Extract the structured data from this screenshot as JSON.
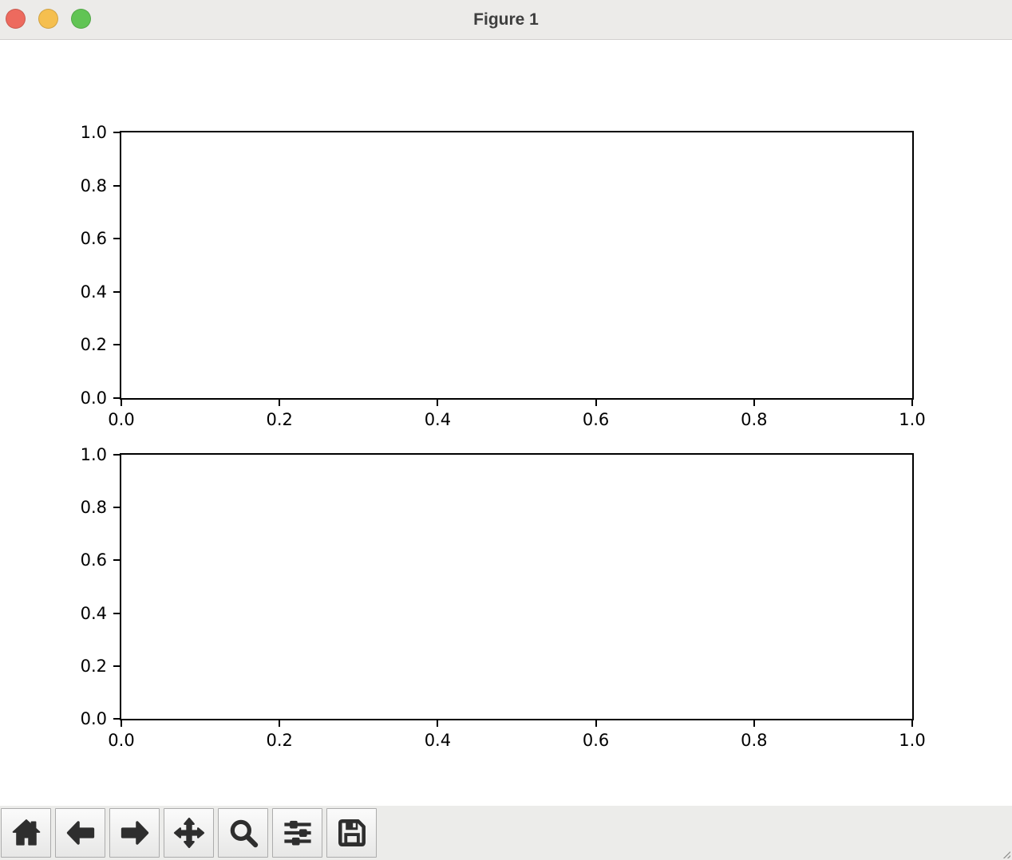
{
  "window": {
    "title": "Figure 1",
    "traffic_lights": {
      "close_color": "#ED6A5E",
      "minimize_color": "#F5BF4F",
      "zoom_color": "#61C454"
    },
    "titlebar_bg": "#ECEBE9",
    "title_color": "#3E3E3E"
  },
  "toolbar": {
    "background": "#ECECEA",
    "button_border": "#ACACAC",
    "icon_color": "#2E2E2E",
    "buttons": [
      {
        "name": "home",
        "icon": "home-icon"
      },
      {
        "name": "back",
        "icon": "arrow-left-icon"
      },
      {
        "name": "forward",
        "icon": "arrow-right-icon"
      },
      {
        "name": "pan",
        "icon": "move-icon"
      },
      {
        "name": "zoom",
        "icon": "magnifier-icon"
      },
      {
        "name": "configure-subplots",
        "icon": "sliders-icon"
      },
      {
        "name": "save",
        "icon": "save-icon"
      }
    ]
  },
  "figure": {
    "background": "#FFFFFF",
    "axis_color": "#000000"
  },
  "chart_data": [
    {
      "type": "line",
      "title": "",
      "xlabel": "",
      "ylabel": "",
      "xlim": [
        0.0,
        1.0
      ],
      "ylim": [
        0.0,
        1.0
      ],
      "xticks": [
        0.0,
        0.2,
        0.4,
        0.6,
        0.8,
        1.0
      ],
      "yticks": [
        0.0,
        0.2,
        0.4,
        0.6,
        0.8,
        1.0
      ],
      "xtick_labels": [
        "0.0",
        "0.2",
        "0.4",
        "0.6",
        "0.8",
        "1.0"
      ],
      "ytick_labels": [
        "0.0",
        "0.2",
        "0.4",
        "0.6",
        "0.8",
        "1.0"
      ],
      "grid": false,
      "series": []
    },
    {
      "type": "line",
      "title": "",
      "xlabel": "",
      "ylabel": "",
      "xlim": [
        0.0,
        1.0
      ],
      "ylim": [
        0.0,
        1.0
      ],
      "xticks": [
        0.0,
        0.2,
        0.4,
        0.6,
        0.8,
        1.0
      ],
      "yticks": [
        0.0,
        0.2,
        0.4,
        0.6,
        0.8,
        1.0
      ],
      "xtick_labels": [
        "0.0",
        "0.2",
        "0.4",
        "0.6",
        "0.8",
        "1.0"
      ],
      "ytick_labels": [
        "0.0",
        "0.2",
        "0.4",
        "0.6",
        "0.8",
        "1.0"
      ],
      "grid": false,
      "series": []
    }
  ]
}
